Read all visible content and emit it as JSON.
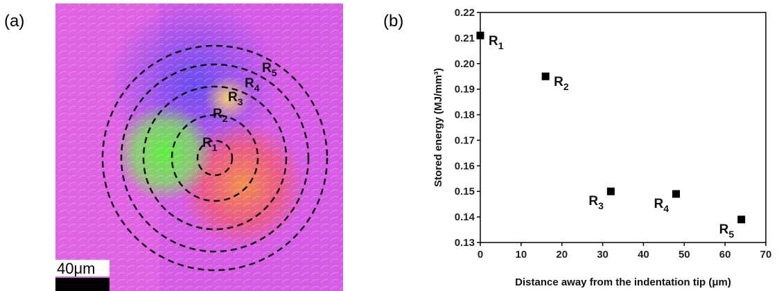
{
  "figure": {
    "panel_a": {
      "label": "(a)",
      "scale_bar": "40μm",
      "ring_labels": [
        {
          "letter": "R",
          "sub": "1"
        },
        {
          "letter": "R",
          "sub": "2"
        },
        {
          "letter": "R",
          "sub": "3"
        },
        {
          "letter": "R",
          "sub": "4"
        },
        {
          "letter": "R",
          "sub": "5"
        }
      ]
    },
    "panel_b": {
      "label": "(b)"
    }
  },
  "chart_data": {
    "type": "scatter",
    "x_label": "Distance away from the indentation tip (μm)",
    "y_label": "Stored energy (MJ/mm³)",
    "x": [
      0,
      16,
      32,
      48,
      64
    ],
    "values": [
      0.211,
      0.195,
      0.15,
      0.149,
      0.139
    ],
    "point_labels": [
      {
        "letter": "R",
        "sub": "1"
      },
      {
        "letter": "R",
        "sub": "2"
      },
      {
        "letter": "R",
        "sub": "3"
      },
      {
        "letter": "R",
        "sub": "4"
      },
      {
        "letter": "R",
        "sub": "5"
      }
    ],
    "color": "#000000",
    "xlim": [
      0,
      70
    ],
    "xticks": [
      0,
      10,
      20,
      30,
      40,
      50,
      60,
      70
    ],
    "ylim": [
      0.13,
      0.22
    ],
    "yticks": [
      0.13,
      0.14,
      0.15,
      0.16,
      0.17,
      0.18,
      0.19,
      {
        "value": 0.2,
        "label": "0.20"
      },
      0.21,
      0.22
    ]
  }
}
